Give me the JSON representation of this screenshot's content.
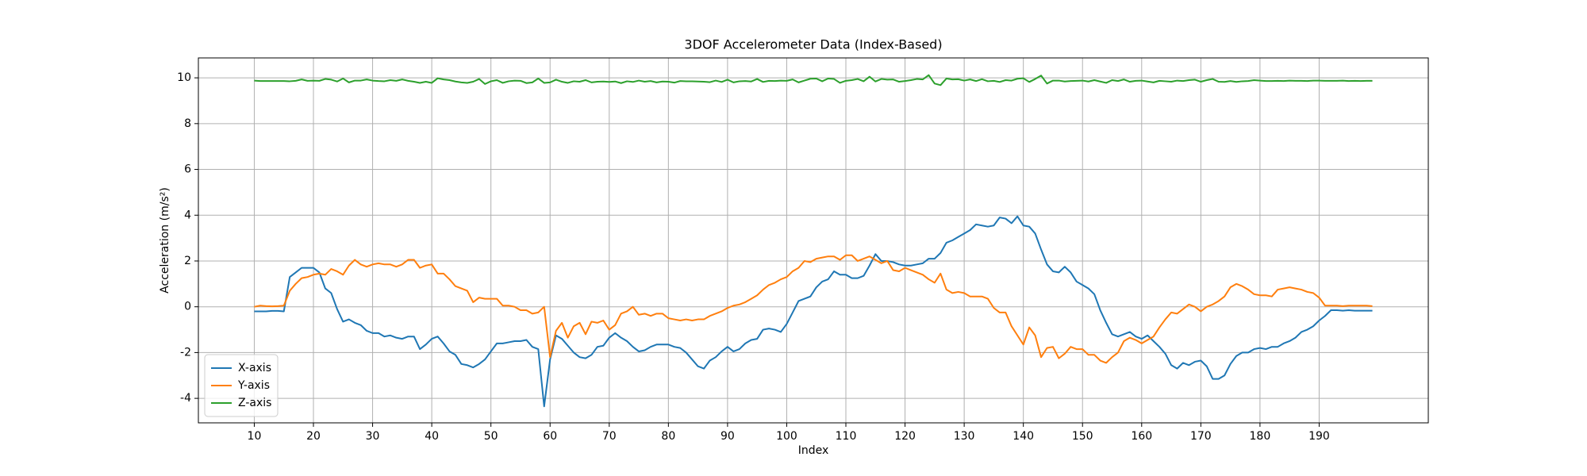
{
  "chart_data": {
    "type": "line",
    "title": "3DOF Accelerometer Data (Index-Based)",
    "xlabel": "Index",
    "ylabel": "Acceleration (m/s²)",
    "x": [
      10,
      11,
      12,
      13,
      14,
      15,
      16,
      17,
      18,
      19,
      20,
      21,
      22,
      23,
      24,
      25,
      26,
      27,
      28,
      29,
      30,
      31,
      32,
      33,
      34,
      35,
      36,
      37,
      38,
      39,
      40,
      41,
      42,
      43,
      44,
      45,
      46,
      47,
      48,
      49,
      50,
      51,
      52,
      53,
      54,
      55,
      56,
      57,
      58,
      59,
      60,
      61,
      62,
      63,
      64,
      65,
      66,
      67,
      68,
      69,
      70,
      71,
      72,
      73,
      74,
      75,
      76,
      77,
      78,
      79,
      80,
      81,
      82,
      83,
      84,
      85,
      86,
      87,
      88,
      89,
      90,
      91,
      92,
      93,
      94,
      95,
      96,
      97,
      98,
      99,
      100,
      101,
      102,
      103,
      104,
      105,
      106,
      107,
      108,
      109,
      110,
      111,
      112,
      113,
      114,
      115,
      116,
      117,
      118,
      119,
      120,
      121,
      122,
      123,
      124,
      125,
      126,
      127,
      128,
      129,
      130,
      131,
      132,
      133,
      134,
      135,
      136,
      137,
      138,
      139,
      140,
      141,
      142,
      143,
      144,
      145,
      146,
      147,
      148,
      149,
      150,
      151,
      152,
      153,
      154,
      155,
      156,
      157,
      158,
      159,
      160,
      161,
      162,
      163,
      164,
      165,
      166,
      167,
      168,
      169,
      170,
      171,
      172,
      173,
      174,
      175,
      176,
      177,
      178,
      179,
      180,
      181,
      182,
      183,
      184,
      185,
      186,
      187,
      188,
      189,
      190,
      191,
      192,
      193,
      194,
      195,
      196,
      197,
      198,
      199
    ],
    "series": [
      {
        "name": "X-axis",
        "color": "#1f77b4",
        "values": [
          -0.2,
          -0.2,
          -0.2,
          -0.18,
          -0.18,
          -0.2,
          1.3,
          1.5,
          1.7,
          1.7,
          1.7,
          1.5,
          0.8,
          0.6,
          -0.1,
          -0.65,
          -0.55,
          -0.7,
          -0.8,
          -1.05,
          -1.15,
          -1.15,
          -1.3,
          -1.25,
          -1.35,
          -1.4,
          -1.3,
          -1.3,
          -1.85,
          -1.65,
          -1.4,
          -1.3,
          -1.6,
          -1.95,
          -2.1,
          -2.5,
          -2.55,
          -2.65,
          -2.5,
          -2.3,
          -1.95,
          -1.6,
          -1.6,
          -1.55,
          -1.5,
          -1.5,
          -1.45,
          -1.75,
          -1.85,
          -4.35,
          -2.3,
          -1.25,
          -1.4,
          -1.7,
          -2.0,
          -2.2,
          -2.25,
          -2.1,
          -1.75,
          -1.7,
          -1.35,
          -1.15,
          -1.35,
          -1.5,
          -1.75,
          -1.95,
          -1.9,
          -1.75,
          -1.65,
          -1.65,
          -1.65,
          -1.75,
          -1.8,
          -2.0,
          -2.3,
          -2.6,
          -2.7,
          -2.35,
          -2.2,
          -1.95,
          -1.75,
          -1.95,
          -1.85,
          -1.6,
          -1.45,
          -1.4,
          -1.0,
          -0.95,
          -1.0,
          -1.1,
          -0.75,
          -0.25,
          0.25,
          0.35,
          0.45,
          0.85,
          1.1,
          1.2,
          1.55,
          1.4,
          1.4,
          1.25,
          1.25,
          1.35,
          1.8,
          2.3,
          2.0,
          2.0,
          1.95,
          1.85,
          1.8,
          1.8,
          1.85,
          1.9,
          2.1,
          2.1,
          2.35,
          2.8,
          2.9,
          3.05,
          3.2,
          3.35,
          3.6,
          3.55,
          3.5,
          3.55,
          3.9,
          3.85,
          3.65,
          3.95,
          3.55,
          3.5,
          3.2,
          2.5,
          1.85,
          1.55,
          1.5,
          1.75,
          1.5,
          1.1,
          0.95,
          0.8,
          0.55,
          -0.15,
          -0.7,
          -1.2,
          -1.3,
          -1.2,
          -1.1,
          -1.3,
          -1.4,
          -1.25,
          -1.5,
          -1.75,
          -2.05,
          -2.55,
          -2.7,
          -2.45,
          -2.55,
          -2.4,
          -2.35,
          -2.6,
          -3.15,
          -3.15,
          -3.0,
          -2.5,
          -2.15,
          -2.0,
          -2.0,
          -1.85,
          -1.8,
          -1.85,
          -1.75,
          -1.75,
          -1.6,
          -1.5,
          -1.35,
          -1.1,
          -1.0,
          -0.85,
          -0.6,
          -0.4,
          -0.15,
          -0.15,
          -0.17,
          -0.15,
          -0.17,
          -0.17,
          -0.17,
          -0.17
        ]
      },
      {
        "name": "Y-axis",
        "color": "#ff7f0e",
        "values": [
          0.0,
          0.05,
          0.03,
          0.02,
          0.03,
          0.05,
          0.7,
          1.0,
          1.25,
          1.3,
          1.4,
          1.45,
          1.4,
          1.65,
          1.55,
          1.4,
          1.8,
          2.05,
          1.85,
          1.75,
          1.85,
          1.9,
          1.85,
          1.85,
          1.75,
          1.85,
          2.05,
          2.05,
          1.7,
          1.8,
          1.85,
          1.45,
          1.45,
          1.2,
          0.9,
          0.8,
          0.7,
          0.2,
          0.4,
          0.35,
          0.35,
          0.35,
          0.05,
          0.05,
          0.0,
          -0.15,
          -0.15,
          -0.3,
          -0.25,
          0.0,
          -2.2,
          -1.05,
          -0.7,
          -1.35,
          -0.85,
          -0.7,
          -1.2,
          -0.65,
          -0.7,
          -0.6,
          -1.0,
          -0.8,
          -0.3,
          -0.2,
          0.0,
          -0.35,
          -0.3,
          -0.4,
          -0.3,
          -0.3,
          -0.5,
          -0.55,
          -0.6,
          -0.55,
          -0.6,
          -0.55,
          -0.55,
          -0.4,
          -0.3,
          -0.2,
          -0.05,
          0.05,
          0.1,
          0.2,
          0.35,
          0.5,
          0.75,
          0.95,
          1.05,
          1.2,
          1.3,
          1.55,
          1.7,
          2.0,
          1.95,
          2.1,
          2.15,
          2.2,
          2.2,
          2.05,
          2.25,
          2.25,
          2.0,
          2.1,
          2.2,
          2.05,
          1.9,
          2.0,
          1.6,
          1.55,
          1.7,
          1.6,
          1.5,
          1.4,
          1.2,
          1.05,
          1.45,
          0.75,
          0.6,
          0.65,
          0.6,
          0.45,
          0.45,
          0.45,
          0.35,
          -0.05,
          -0.25,
          -0.25,
          -0.85,
          -1.25,
          -1.65,
          -0.9,
          -1.25,
          -2.2,
          -1.8,
          -1.75,
          -2.25,
          -2.05,
          -1.75,
          -1.85,
          -1.85,
          -2.1,
          -2.1,
          -2.35,
          -2.45,
          -2.2,
          -2.0,
          -1.5,
          -1.35,
          -1.45,
          -1.6,
          -1.45,
          -1.3,
          -0.9,
          -0.55,
          -0.25,
          -0.3,
          -0.1,
          0.1,
          0.0,
          -0.2,
          0.0,
          0.1,
          0.25,
          0.45,
          0.85,
          1.0,
          0.9,
          0.75,
          0.55,
          0.5,
          0.5,
          0.45,
          0.75,
          0.8,
          0.85,
          0.8,
          0.75,
          0.65,
          0.6,
          0.4,
          0.05,
          0.05,
          0.05,
          0.03,
          0.05,
          0.05,
          0.05,
          0.05,
          0.03
        ]
      },
      {
        "name": "Z-axis",
        "color": "#2ca02c",
        "values": [
          9.88,
          9.86,
          9.86,
          9.86,
          9.86,
          9.86,
          9.85,
          9.87,
          9.93,
          9.87,
          9.88,
          9.87,
          9.95,
          9.92,
          9.84,
          9.97,
          9.8,
          9.88,
          9.88,
          9.93,
          9.88,
          9.86,
          9.85,
          9.9,
          9.87,
          9.93,
          9.87,
          9.83,
          9.78,
          9.83,
          9.78,
          9.98,
          9.93,
          9.9,
          9.84,
          9.8,
          9.78,
          9.83,
          9.95,
          9.73,
          9.85,
          9.9,
          9.78,
          9.85,
          9.88,
          9.87,
          9.77,
          9.8,
          9.97,
          9.78,
          9.8,
          9.92,
          9.83,
          9.78,
          9.85,
          9.83,
          9.9,
          9.8,
          9.83,
          9.84,
          9.82,
          9.84,
          9.77,
          9.85,
          9.82,
          9.88,
          9.83,
          9.86,
          9.8,
          9.84,
          9.83,
          9.79,
          9.86,
          9.85,
          9.85,
          9.84,
          9.83,
          9.81,
          9.88,
          9.82,
          9.92,
          9.8,
          9.85,
          9.86,
          9.84,
          9.95,
          9.82,
          9.87,
          9.86,
          9.88,
          9.87,
          9.93,
          9.8,
          9.88,
          9.96,
          9.97,
          9.85,
          9.97,
          9.95,
          9.78,
          9.87,
          9.9,
          9.95,
          9.85,
          10.05,
          9.84,
          9.95,
          9.92,
          9.93,
          9.83,
          9.86,
          9.9,
          9.95,
          9.93,
          10.12,
          9.75,
          9.68,
          9.97,
          9.93,
          9.94,
          9.88,
          9.93,
          9.86,
          9.94,
          9.85,
          9.87,
          9.82,
          9.9,
          9.88,
          9.96,
          9.98,
          9.82,
          9.95,
          10.1,
          9.75,
          9.88,
          9.88,
          9.84,
          9.86,
          9.87,
          9.88,
          9.84,
          9.9,
          9.84,
          9.78,
          9.9,
          9.86,
          9.93,
          9.83,
          9.87,
          9.88,
          9.84,
          9.8,
          9.87,
          9.85,
          9.83,
          9.88,
          9.86,
          9.9,
          9.92,
          9.83,
          9.9,
          9.95,
          9.83,
          9.82,
          9.86,
          9.82,
          9.85,
          9.86,
          9.9,
          9.88,
          9.86,
          9.86,
          9.87,
          9.86,
          9.88,
          9.87,
          9.87,
          9.86,
          9.88,
          9.88,
          9.87,
          9.87,
          9.87,
          9.88,
          9.86,
          9.87,
          9.86,
          9.87,
          9.87
        ]
      }
    ],
    "xlim": [
      0.55,
      208.45
    ],
    "ylim": [
      -5.07,
      10.87
    ],
    "xticks": [
      10,
      20,
      30,
      40,
      50,
      60,
      70,
      80,
      90,
      100,
      110,
      120,
      130,
      140,
      150,
      160,
      170,
      180,
      190
    ],
    "yticks": [
      -4,
      -2,
      0,
      2,
      4,
      6,
      8,
      10
    ],
    "grid": true,
    "legend": "lower left"
  }
}
